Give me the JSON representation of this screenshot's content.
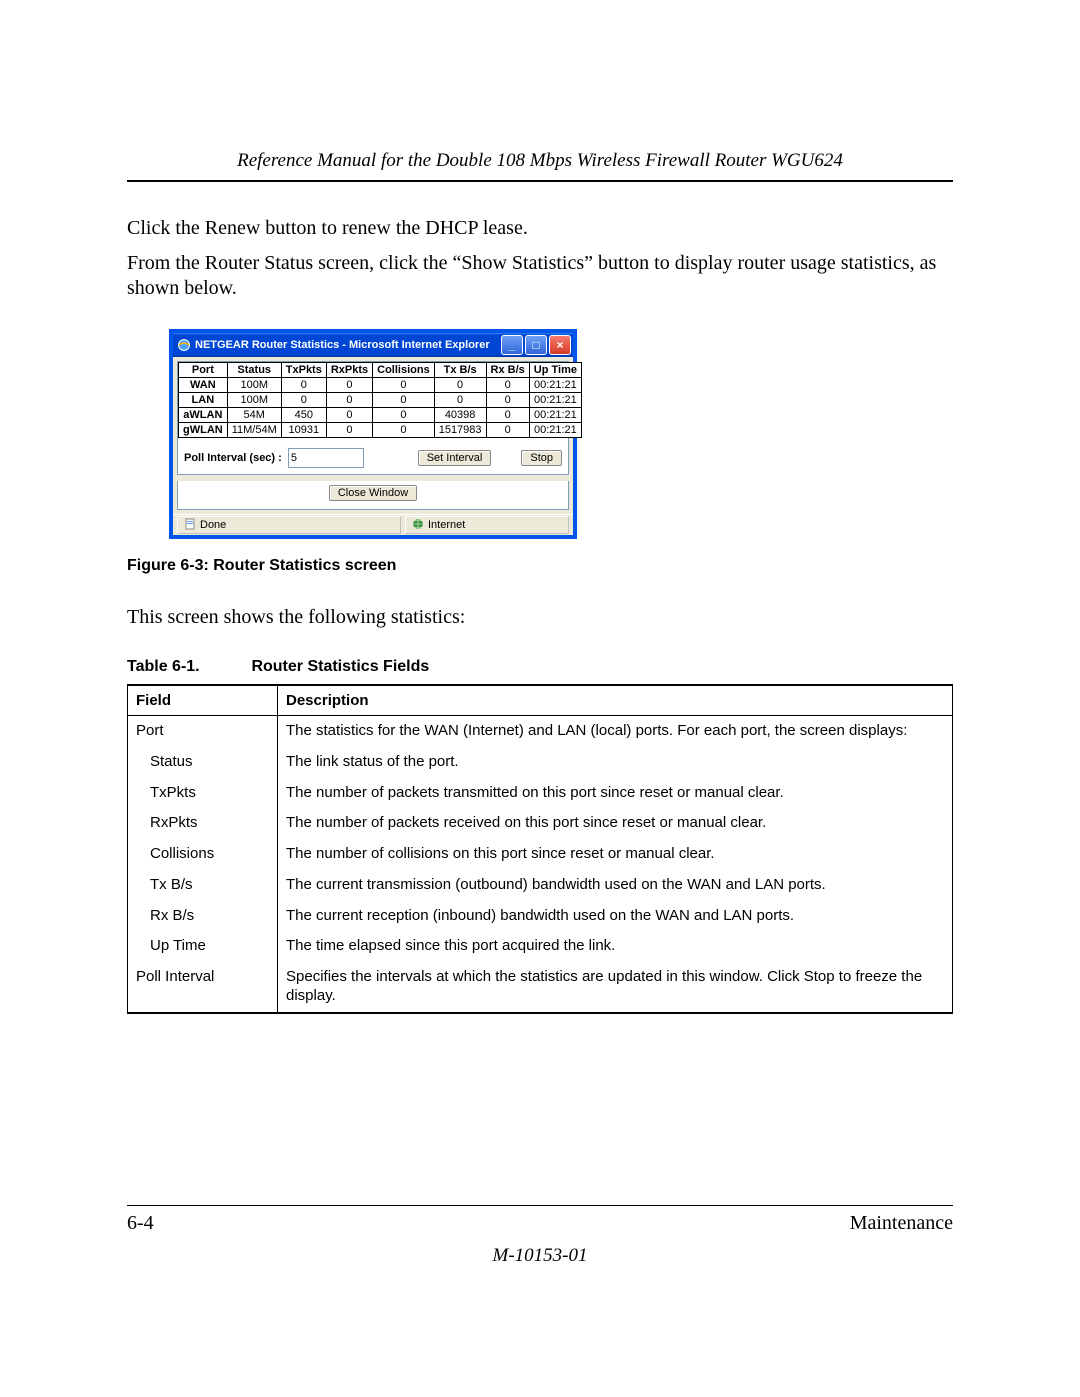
{
  "header": {
    "title": "Reference Manual for the Double 108 Mbps Wireless Firewall Router WGU624"
  },
  "paragraphs": {
    "p1": "Click the Renew button to renew the DHCP lease.",
    "p2": "From the Router Status screen, click the “Show Statistics” button to display router usage statistics, as shown below.",
    "p3": "This screen shows the following statistics:"
  },
  "window": {
    "title": "NETGEAR Router Statistics - Microsoft Internet Explorer",
    "columns": [
      "Port",
      "Status",
      "TxPkts",
      "RxPkts",
      "Collisions",
      "Tx B/s",
      "Rx B/s",
      "Up Time"
    ],
    "rows": [
      [
        "WAN",
        "100M",
        "0",
        "0",
        "0",
        "0",
        "0",
        "00:21:21"
      ],
      [
        "LAN",
        "100M",
        "0",
        "0",
        "0",
        "0",
        "0",
        "00:21:21"
      ],
      [
        "aWLAN",
        "54M",
        "450",
        "0",
        "0",
        "40398",
        "0",
        "00:21:21"
      ],
      [
        "gWLAN",
        "11M/54M",
        "10931",
        "0",
        "0",
        "1517983",
        "0",
        "00:21:21"
      ]
    ],
    "poll_label": "Poll Interval (sec) :",
    "poll_value": "5",
    "set_interval_btn": "Set Interval",
    "stop_btn": "Stop",
    "close_window_btn": "Close Window",
    "status_done": "Done",
    "status_internet": "Internet",
    "colors": {
      "titlebar_bg": "#0046d5",
      "close_btn_bg": "#d83a2a",
      "body_bg": "#ece9d8",
      "border": "#0055ea"
    }
  },
  "figure_caption": "Figure 6-3:  Router Statistics screen",
  "table_caption": {
    "label": "Table 6-1.",
    "title": "Router Statistics Fields"
  },
  "fields_table": {
    "headers": [
      "Field",
      "Description"
    ],
    "rows": [
      {
        "field": "Port",
        "desc": "The statistics for the WAN (Internet) and LAN (local) ports. For each port, the screen displays:",
        "indent": false
      },
      {
        "field": "Status",
        "desc": "The link status of the port.",
        "indent": true
      },
      {
        "field": "TxPkts",
        "desc": "The number of packets transmitted on this port since reset or manual clear.",
        "indent": true
      },
      {
        "field": "RxPkts",
        "desc": "The number of packets received on this port since reset or manual clear.",
        "indent": true
      },
      {
        "field": "Collisions",
        "desc": "The number of collisions on this port since reset or manual clear.",
        "indent": true
      },
      {
        "field": "Tx B/s",
        "desc": "The current transmission (outbound) bandwidth used on the WAN and LAN ports.",
        "indent": true
      },
      {
        "field": "Rx B/s",
        "desc": "The current reception (inbound) bandwidth used on the WAN and LAN ports.",
        "indent": true
      },
      {
        "field": "Up Time",
        "desc": "The time elapsed since this port acquired the link.",
        "indent": true
      },
      {
        "field": "Poll Interval",
        "desc": "Specifies the intervals at which the statistics are updated in this window. Click Stop to freeze the display.",
        "indent": false
      }
    ]
  },
  "footer": {
    "page": "6-4",
    "section": "Maintenance",
    "docnum": "M-10153-01"
  }
}
